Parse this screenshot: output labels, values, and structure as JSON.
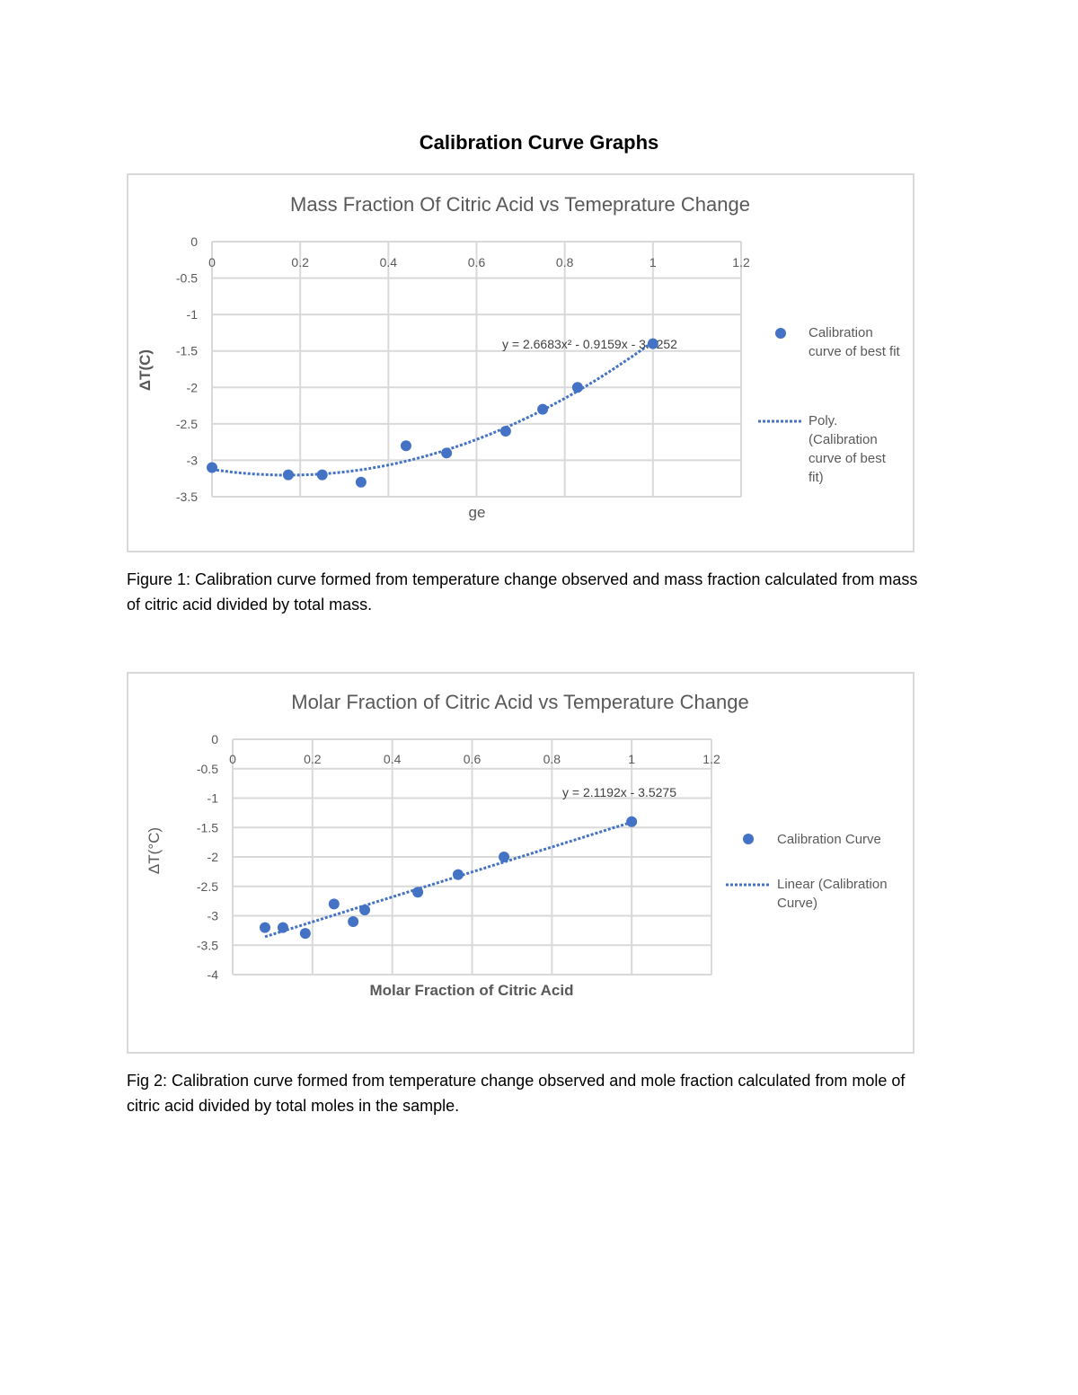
{
  "document": {
    "title": "Calibration Curve Graphs",
    "caption1": "Figure 1: Calibration curve formed from temperature change observed and mass fraction calculated from mass of citric acid divided by total mass.",
    "caption2": "Fig 2: Calibration curve formed from temperature change observed and mole fraction calculated from mole of citric acid divided by total moles in the sample."
  },
  "chart_data": [
    {
      "type": "scatter",
      "title": "Mass Fraction Of Citric Acid vs Temeprature Change",
      "xlabel": "ge",
      "ylabel": "ΔT(C)",
      "xlim": [
        0,
        1.2
      ],
      "ylim": [
        -3.5,
        0
      ],
      "xticks": [
        "0",
        "0.2",
        "0.4",
        "0.6",
        "0.8",
        "1",
        "1.2"
      ],
      "yticks": [
        "0",
        "-0.5",
        "-1",
        "-1.5",
        "-2",
        "-2.5",
        "-3",
        "-3.5"
      ],
      "grid": true,
      "legend_position": "right",
      "color": "#4472C4",
      "series": [
        {
          "name": "Calibration curve of best fit",
          "x": [
            0,
            0.173,
            0.25,
            0.338,
            0.44,
            0.532,
            0.666,
            0.75,
            0.829,
            1.0
          ],
          "y": [
            -3.1,
            -3.2,
            -3.2,
            -3.3,
            -2.8,
            -2.9,
            -2.6,
            -2.3,
            -2.0,
            -1.4
          ]
        }
      ],
      "trendline": {
        "name": "Poly. (Calibration curve of best fit)",
        "type": "polynomial",
        "coefficients": [
          2.6683,
          -0.9159,
          -3.1252
        ],
        "x_range": [
          0,
          1.0
        ],
        "equation": "y = 2.6683x² - 0.9159x - 3.1252"
      }
    },
    {
      "type": "scatter",
      "title": "Molar Fraction of Citric Acid vs Temperature Change",
      "xlabel": "Molar Fraction of Citric Acid",
      "ylabel": "ΔT(°C)",
      "xlim": [
        0,
        1.2
      ],
      "ylim": [
        -4,
        0
      ],
      "xticks": [
        "0",
        "0.2",
        "0.4",
        "0.6",
        "0.8",
        "1",
        "1.2"
      ],
      "yticks": [
        "0",
        "-0.5",
        "-1",
        "-1.5",
        "-2",
        "-2.5",
        "-3",
        "-3.5",
        "-4"
      ],
      "grid": true,
      "legend_position": "right",
      "color": "#4472C4",
      "series": [
        {
          "name": "Calibration Curve",
          "x": [
            0.081,
            0.126,
            0.182,
            0.254,
            0.302,
            0.331,
            0.464,
            0.565,
            0.68,
            1.0
          ],
          "y": [
            -3.2,
            -3.2,
            -3.3,
            -2.8,
            -3.1,
            -2.9,
            -2.6,
            -2.3,
            -2.0,
            -1.4
          ]
        }
      ],
      "trendline": {
        "name": "Linear (Calibration Curve)",
        "type": "linear",
        "coefficients": [
          2.1192,
          -3.5275
        ],
        "x_range": [
          0.081,
          1.0
        ],
        "equation": "y = 2.1192x - 3.5275"
      }
    }
  ]
}
